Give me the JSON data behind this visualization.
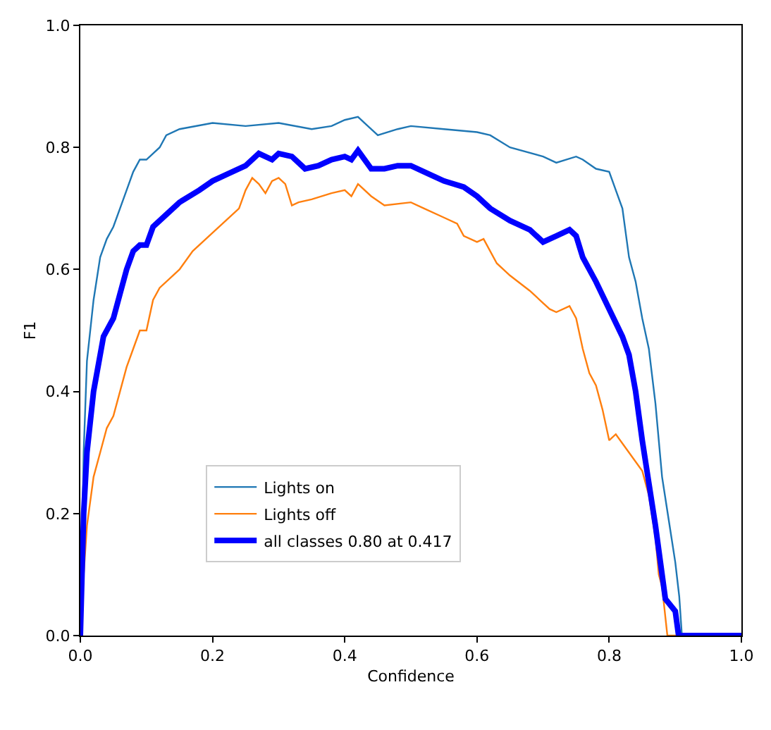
{
  "chart_data": {
    "type": "line",
    "xlabel": "Confidence",
    "ylabel": "F1",
    "xlim": [
      0,
      1
    ],
    "ylim": [
      0,
      1
    ],
    "xticks": [
      {
        "value": 0,
        "label": "0.0"
      },
      0.2,
      0.4,
      0.6,
      0.8,
      {
        "value": 1,
        "label": "1.0"
      }
    ],
    "yticks": [
      {
        "value": 0,
        "label": "0.0"
      },
      0.2,
      0.4,
      0.6,
      0.8,
      {
        "value": 1,
        "label": "1.0"
      }
    ],
    "legend": "bottom",
    "marker": "none",
    "line_style": "solid",
    "series": [
      {
        "name": "Lights on",
        "color": "#1f77b4",
        "x": [
          0,
          0.005,
          0.01,
          0.02,
          0.03,
          0.04,
          0.05,
          0.06,
          0.07,
          0.08,
          0.09,
          0.1,
          0.11,
          0.12,
          0.13,
          0.15,
          0.2,
          0.25,
          0.3,
          0.35,
          0.38,
          0.4,
          0.42,
          0.43,
          0.45,
          0.48,
          0.5,
          0.55,
          0.6,
          0.62,
          0.65,
          0.7,
          0.72,
          0.75,
          0.76,
          0.78,
          0.8,
          0.81,
          0.82,
          0.83,
          0.84,
          0.85,
          0.86,
          0.87,
          0.88,
          0.89,
          0.9,
          0.906,
          0.91,
          1.0
        ],
        "values": [
          0,
          0.3,
          0.45,
          0.55,
          0.62,
          0.65,
          0.67,
          0.7,
          0.73,
          0.76,
          0.78,
          0.78,
          0.79,
          0.8,
          0.82,
          0.83,
          0.84,
          0.835,
          0.84,
          0.83,
          0.835,
          0.845,
          0.85,
          0.84,
          0.82,
          0.83,
          0.835,
          0.83,
          0.825,
          0.82,
          0.8,
          0.785,
          0.775,
          0.785,
          0.78,
          0.765,
          0.76,
          0.73,
          0.7,
          0.62,
          0.58,
          0.52,
          0.47,
          0.38,
          0.26,
          0.19,
          0.12,
          0.064,
          0,
          0
        ]
      },
      {
        "name": "Lights off",
        "color": "#ff7f0e",
        "x": [
          0,
          0.005,
          0.01,
          0.02,
          0.03,
          0.04,
          0.05,
          0.06,
          0.07,
          0.08,
          0.09,
          0.1,
          0.11,
          0.12,
          0.14,
          0.15,
          0.17,
          0.2,
          0.22,
          0.24,
          0.25,
          0.26,
          0.27,
          0.28,
          0.29,
          0.3,
          0.31,
          0.32,
          0.33,
          0.35,
          0.38,
          0.4,
          0.41,
          0.42,
          0.44,
          0.46,
          0.5,
          0.52,
          0.55,
          0.57,
          0.58,
          0.6,
          0.61,
          0.63,
          0.65,
          0.68,
          0.7,
          0.71,
          0.72,
          0.74,
          0.745,
          0.75,
          0.76,
          0.77,
          0.78,
          0.79,
          0.8,
          0.81,
          0.83,
          0.85,
          0.86,
          0.87,
          0.875,
          0.88,
          0.888,
          1.0
        ],
        "values": [
          0,
          0.1,
          0.18,
          0.26,
          0.3,
          0.34,
          0.36,
          0.4,
          0.44,
          0.47,
          0.5,
          0.5,
          0.55,
          0.57,
          0.59,
          0.6,
          0.63,
          0.66,
          0.68,
          0.7,
          0.73,
          0.75,
          0.74,
          0.725,
          0.745,
          0.75,
          0.74,
          0.705,
          0.71,
          0.715,
          0.725,
          0.73,
          0.72,
          0.74,
          0.72,
          0.705,
          0.71,
          0.7,
          0.685,
          0.675,
          0.655,
          0.645,
          0.65,
          0.61,
          0.59,
          0.565,
          0.545,
          0.535,
          0.53,
          0.54,
          0.53,
          0.52,
          0.47,
          0.43,
          0.41,
          0.37,
          0.32,
          0.33,
          0.3,
          0.27,
          0.23,
          0.16,
          0.1,
          0.08,
          0,
          0
        ]
      },
      {
        "name": "all classes 0.80 at 0.417",
        "color": "#0000ff",
        "x": [
          0,
          0.005,
          0.01,
          0.02,
          0.03,
          0.035,
          0.05,
          0.06,
          0.07,
          0.08,
          0.09,
          0.1,
          0.11,
          0.13,
          0.15,
          0.18,
          0.2,
          0.22,
          0.25,
          0.27,
          0.29,
          0.3,
          0.32,
          0.34,
          0.36,
          0.38,
          0.4,
          0.41,
          0.42,
          0.44,
          0.46,
          0.48,
          0.5,
          0.52,
          0.55,
          0.58,
          0.6,
          0.62,
          0.65,
          0.68,
          0.7,
          0.72,
          0.74,
          0.75,
          0.76,
          0.78,
          0.8,
          0.82,
          0.83,
          0.84,
          0.85,
          0.86,
          0.87,
          0.88,
          0.885,
          0.9,
          0.905,
          1.0
        ],
        "values": [
          0,
          0.2,
          0.3,
          0.4,
          0.46,
          0.49,
          0.52,
          0.56,
          0.6,
          0.63,
          0.64,
          0.64,
          0.67,
          0.69,
          0.71,
          0.73,
          0.745,
          0.755,
          0.77,
          0.79,
          0.78,
          0.79,
          0.785,
          0.765,
          0.77,
          0.78,
          0.785,
          0.78,
          0.795,
          0.765,
          0.765,
          0.77,
          0.77,
          0.76,
          0.745,
          0.735,
          0.72,
          0.7,
          0.68,
          0.665,
          0.645,
          0.655,
          0.665,
          0.655,
          0.62,
          0.58,
          0.535,
          0.49,
          0.46,
          0.4,
          0.32,
          0.25,
          0.18,
          0.1,
          0.06,
          0.04,
          0,
          0
        ]
      }
    ]
  }
}
